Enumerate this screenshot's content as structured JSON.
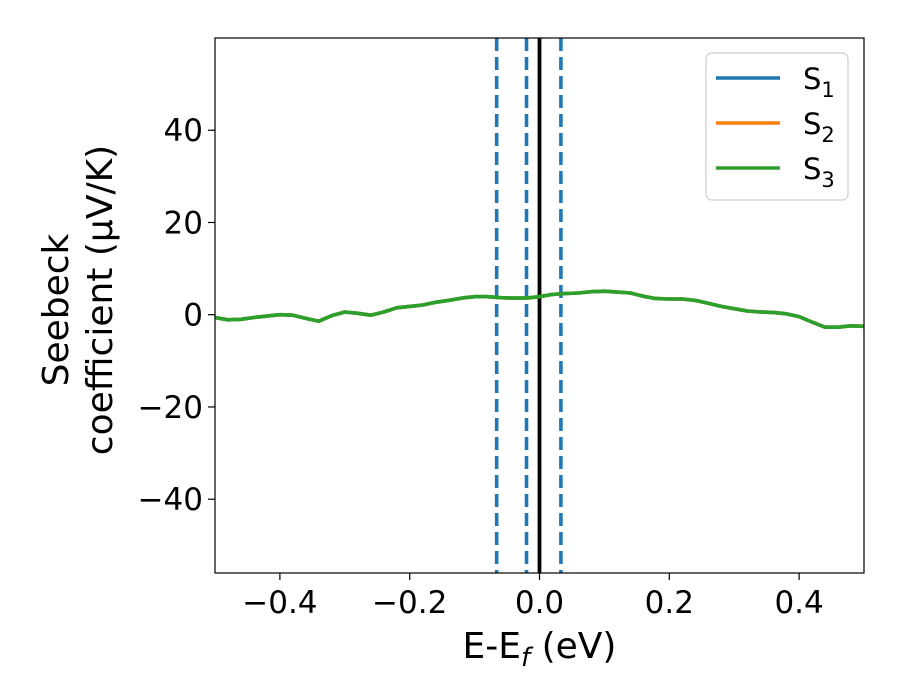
{
  "chart_data": {
    "type": "line",
    "title": "",
    "xlabel": {
      "main": "E-E",
      "sub": "f",
      "tail": " (eV)"
    },
    "ylabel": {
      "line1": "Seebeck",
      "line2": "coefficient  (μV/K)"
    },
    "xlim": [
      -0.5,
      0.5
    ],
    "ylim": [
      -56,
      60
    ],
    "xticks": [
      -0.4,
      -0.2,
      0.0,
      0.2,
      0.4
    ],
    "xtick_labels": [
      "−0.4",
      "−0.2",
      "0.0",
      "0.2",
      "0.4"
    ],
    "yticks": [
      -40,
      -20,
      0,
      20,
      40
    ],
    "ytick_labels": [
      "−40",
      "−20",
      "0",
      "20",
      "40"
    ],
    "grid": false,
    "legend_position": "top-right",
    "vlines": [
      {
        "x": -0.066,
        "style": "dashed",
        "color": "#1f77b4"
      },
      {
        "x": -0.02,
        "style": "dashed",
        "color": "#1f77b4"
      },
      {
        "x": 0.033,
        "style": "dashed",
        "color": "#1f77b4"
      },
      {
        "x": 0.0,
        "style": "solid",
        "color": "#000000"
      }
    ],
    "x": [
      -0.5,
      -0.48,
      -0.46,
      -0.44,
      -0.42,
      -0.4,
      -0.38,
      -0.36,
      -0.34,
      -0.32,
      -0.3,
      -0.28,
      -0.26,
      -0.24,
      -0.22,
      -0.2,
      -0.18,
      -0.16,
      -0.14,
      -0.12,
      -0.1,
      -0.08,
      -0.06,
      -0.04,
      -0.02,
      0.0,
      0.02,
      0.04,
      0.06,
      0.08,
      0.1,
      0.12,
      0.14,
      0.16,
      0.18,
      0.2,
      0.22,
      0.24,
      0.26,
      0.28,
      0.3,
      0.32,
      0.34,
      0.36,
      0.38,
      0.4,
      0.42,
      0.44,
      0.46,
      0.48,
      0.5
    ],
    "series": [
      {
        "name": "S",
        "sub": "1",
        "color": "#1f77b4",
        "values": [
          -0.6,
          -1.1,
          -1.0,
          -0.6,
          -0.3,
          0.0,
          -0.1,
          -0.8,
          -1.4,
          -0.2,
          0.6,
          0.3,
          -0.1,
          0.6,
          1.5,
          1.8,
          2.1,
          2.7,
          3.1,
          3.6,
          3.9,
          3.9,
          3.7,
          3.6,
          3.6,
          3.9,
          4.4,
          4.6,
          4.7,
          5.0,
          5.1,
          4.9,
          4.7,
          4.0,
          3.5,
          3.4,
          3.4,
          3.1,
          2.5,
          1.8,
          1.3,
          0.8,
          0.6,
          0.5,
          0.2,
          -0.4,
          -1.6,
          -2.7,
          -2.7,
          -2.4,
          -2.5
        ]
      },
      {
        "name": "S",
        "sub": "2",
        "color": "#ff7f0e",
        "values": [
          -0.6,
          -1.1,
          -1.0,
          -0.6,
          -0.3,
          0.0,
          -0.1,
          -0.8,
          -1.4,
          -0.2,
          0.6,
          0.3,
          -0.1,
          0.6,
          1.5,
          1.8,
          2.1,
          2.7,
          3.1,
          3.6,
          3.9,
          3.9,
          3.7,
          3.6,
          3.6,
          3.9,
          4.4,
          4.6,
          4.7,
          5.0,
          5.1,
          4.9,
          4.7,
          4.0,
          3.5,
          3.4,
          3.4,
          3.1,
          2.5,
          1.8,
          1.3,
          0.8,
          0.6,
          0.5,
          0.2,
          -0.4,
          -1.6,
          -2.7,
          -2.7,
          -2.4,
          -2.5
        ]
      },
      {
        "name": "S",
        "sub": "3",
        "color": "#2ca02c",
        "values": [
          -0.6,
          -1.1,
          -1.0,
          -0.6,
          -0.3,
          0.0,
          -0.1,
          -0.8,
          -1.4,
          -0.2,
          0.6,
          0.3,
          -0.1,
          0.6,
          1.5,
          1.8,
          2.1,
          2.7,
          3.1,
          3.6,
          3.9,
          3.9,
          3.7,
          3.6,
          3.6,
          3.9,
          4.4,
          4.6,
          4.7,
          5.0,
          5.1,
          4.9,
          4.7,
          4.0,
          3.5,
          3.4,
          3.4,
          3.1,
          2.5,
          1.8,
          1.3,
          0.8,
          0.6,
          0.5,
          0.2,
          -0.4,
          -1.6,
          -2.7,
          -2.7,
          -2.4,
          -2.5
        ]
      }
    ]
  }
}
